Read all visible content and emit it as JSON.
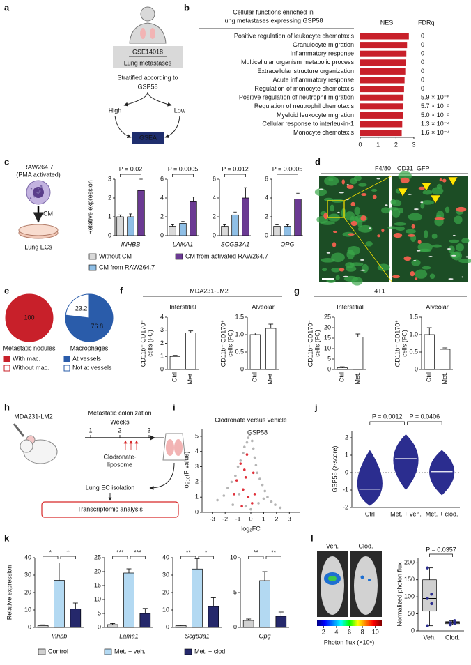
{
  "panels": {
    "a": {
      "label": "a",
      "dataset": "GSE14018",
      "tissue": "Lung metastases",
      "stratification": "Stratified according to",
      "signature": "GSP58",
      "high": "High",
      "low": "Low",
      "method": "GSEA"
    },
    "c": {
      "cell": "RAW264.7",
      "treatment": "(PMA activated)",
      "medium": "CM",
      "target": "Lung ECs"
    },
    "d": {
      "label": "d",
      "markers": [
        {
          "name": "F4/80",
          "color": "#e8413c"
        },
        {
          "name": "CD31",
          "color": "#8c8c8c"
        },
        {
          "name": "GFP",
          "color": "#2fae3a"
        }
      ]
    },
    "h": {
      "label": "h",
      "cell": "MDA231-LM2",
      "title": "Metastatic colonization",
      "axis_label": "Weeks",
      "weeks": [
        1,
        2,
        3
      ],
      "treatment": [
        "Clodronate-",
        "liposome"
      ],
      "step": "Lung EC isolation",
      "analysis": "Transcriptomic analysis"
    },
    "l": {
      "label": "l",
      "groups": [
        "Veh.",
        "Clod."
      ],
      "colorbar_label": "Photon flux (×10⁶)",
      "colorbar_lim": [
        1,
        11
      ],
      "colorbar_ticks": [
        2,
        4,
        6,
        8,
        10
      ]
    }
  },
  "chart_data": [
    {
      "type": "hbar",
      "label": "b",
      "title": [
        "Cellular functions enriched in",
        "lung metastases expressing GSP58"
      ],
      "value_label": "NES",
      "fdr_title": "FDRq",
      "color": "#c8202a",
      "categories": [
        "Positive regulation of leukocyte chemotaxis",
        "Granulocyte migration",
        "Inflammatory response",
        "Multicellular organism metabolic process",
        "Extracellular structure organization",
        "Acute inflammatory response",
        "Regulation of monocyte chemotaxis",
        "Positive regulation of neutrophil migration",
        "Regulation of neutrophil chemotaxis",
        "Myeloid leukocyte migration",
        "Cellular response to interleukin-1",
        "Monocyte chemotaxis"
      ],
      "values": [
        2.72,
        2.62,
        2.58,
        2.55,
        2.52,
        2.48,
        2.45,
        2.42,
        2.4,
        2.38,
        2.35,
        2.32
      ],
      "fdr": [
        0,
        0,
        0,
        0,
        0,
        0,
        0,
        {
          "value": 5.9e-05,
          "label": "5.9 × 10⁻⁵"
        },
        {
          "value": 5.7e-05,
          "label": "5.7 × 10⁻⁵"
        },
        {
          "value": 5e-05,
          "label": "5.0 × 10⁻⁵"
        },
        {
          "value": 0.00013,
          "label": "1.3 × 10⁻⁴"
        },
        {
          "value": 0.00016,
          "label": "1.6 × 10⁻⁴"
        }
      ],
      "xlim": [
        0,
        3
      ],
      "xticks": [
        0,
        1,
        2,
        3
      ]
    },
    {
      "type": "bar_panel",
      "label": "c",
      "ylabel": "Relative expression",
      "legend": [
        {
          "name": "Without CM",
          "color": "#d9d9d9"
        },
        {
          "name": "CM from RAW264.7",
          "color": "#8fbfe6"
        },
        {
          "name": "CM from activated RAW264.7",
          "color": "#6b3a93"
        }
      ],
      "subplots": [
        {
          "title": "INHBB",
          "annotation": "P = 0.02",
          "values": [
            1,
            1,
            2.4
          ],
          "errors": [
            0.1,
            0.15,
            0.6
          ],
          "ylim": [
            0,
            3
          ],
          "yticks": [
            0,
            1,
            2,
            3
          ]
        },
        {
          "title": "LAMA1",
          "annotation": "P = 0.0005",
          "values": [
            1,
            1.3,
            3.6
          ],
          "errors": [
            0.15,
            0.2,
            0.5
          ],
          "ylim": [
            0,
            6
          ],
          "yticks": [
            0,
            2,
            4,
            6
          ]
        },
        {
          "title": "SCGB3A1",
          "annotation": "P = 0.012",
          "values": [
            1,
            2.2,
            4
          ],
          "errors": [
            0.15,
            0.3,
            1.1
          ],
          "ylim": [
            0,
            6
          ],
          "yticks": [
            0,
            2,
            4,
            6
          ]
        },
        {
          "title": "OPG",
          "annotation": "P = 0.0005",
          "values": [
            1,
            1,
            3.9
          ],
          "errors": [
            0.15,
            0.15,
            0.6
          ],
          "ylim": [
            0,
            6
          ],
          "yticks": [
            0,
            2,
            4,
            6
          ]
        }
      ]
    },
    {
      "type": "pie",
      "label": "e",
      "pies": [
        {
          "title": "Metastatic nodules",
          "slices": [
            {
              "name": "With mac.",
              "value": 100,
              "color": "#c8202a"
            },
            {
              "name": "Without mac.",
              "color": "#ffffff"
            }
          ]
        },
        {
          "title": "Macrophages",
          "slices": [
            {
              "name": "At vessels",
              "value": 76.8,
              "color": "#2a5caa"
            },
            {
              "name": "Not at vessels",
              "value": 23.2,
              "color": "#ffffff"
            }
          ]
        }
      ]
    },
    {
      "type": "bar_panel",
      "label": "f",
      "title": "MDA231-LM2",
      "categories": [
        "Ctrl",
        "Met."
      ],
      "color": "#ffffff",
      "subplots": [
        {
          "title": "Interstitial",
          "ylabel": [
            "CD11b⁺ CD170⁻",
            "cells (FC)"
          ],
          "values": [
            1,
            2.8
          ],
          "errors": [
            0.08,
            0.15
          ],
          "ylim": [
            0,
            4
          ],
          "yticks": [
            0,
            1,
            2,
            3,
            4
          ]
        },
        {
          "title": "Alveolar",
          "ylabel": [
            "CD11b⁻ CD170⁺",
            "cells (FC)"
          ],
          "values": [
            1,
            1.18
          ],
          "errors": [
            0.05,
            0.12
          ],
          "ylim": [
            0,
            1.5
          ],
          "yticks": [
            0,
            0.5,
            {
              "value": 1,
              "label": "1.0"
            },
            1.5
          ]
        }
      ]
    },
    {
      "type": "bar_panel",
      "label": "g",
      "title": "4T1",
      "categories": [
        "Ctrl",
        "Met."
      ],
      "color": "#ffffff",
      "subplots": [
        {
          "title": "Interstitial",
          "ylabel": [
            "CD11b⁺ CD170⁻",
            "cells (FC)"
          ],
          "values": [
            0.8,
            15.5
          ],
          "errors": [
            0.5,
            1.5
          ],
          "ylim": [
            0,
            25
          ],
          "yticks": [
            0,
            5,
            10,
            15,
            20,
            25
          ]
        },
        {
          "title": "Alveolar",
          "ylabel": [
            "CD11b⁻ CD170⁺",
            "cells (FC)"
          ],
          "values": [
            1,
            0.58
          ],
          "errors": [
            0.2,
            0.04
          ],
          "ylim": [
            0,
            1.5
          ],
          "yticks": [
            0,
            0.5,
            {
              "value": 1,
              "label": "1.0"
            },
            1.5
          ]
        }
      ]
    },
    {
      "type": "scatter",
      "label": "i",
      "title": "Clodronate versus vehicle",
      "xlabel": "log₂FC",
      "ylabel": "log₁₀(P value)",
      "xlim": [
        -3.8,
        3.8
      ],
      "ylim": [
        0,
        5.5
      ],
      "xticks": [
        -3,
        -2,
        -1,
        0,
        1,
        2,
        3
      ],
      "yticks": [
        0,
        1,
        2,
        3,
        4,
        5
      ],
      "series": [
        {
          "color": "#b5b5b5",
          "x": [
            -2.6,
            -2.1,
            -1.8,
            -1.5,
            -1.2,
            -1.0,
            -0.8,
            -0.6,
            -0.5,
            -0.3,
            -0.2,
            -0.1,
            0.1,
            0.2,
            0.3,
            0.4,
            0.5,
            0.7,
            0.9,
            1.1,
            1.3,
            1.6,
            1.9,
            2.3,
            -0.4,
            0.0,
            0.6,
            -0.9,
            1.0,
            -1.4
          ],
          "y": [
            0.8,
            1.1,
            1.6,
            2.0,
            2.4,
            3.0,
            3.4,
            3.9,
            4.3,
            4.6,
            4.9,
            5.1,
            4.7,
            4.2,
            3.6,
            3.1,
            2.6,
            2.2,
            1.8,
            1.4,
            1.0,
            0.7,
            0.5,
            0.3,
            0.4,
            0.2,
            0.6,
            1.2,
            0.9,
            0.5
          ]
        },
        {
          "name": "GSP58",
          "color": "#e0303a",
          "x": [
            -1.1,
            -0.8,
            -0.6,
            -0.5,
            -0.3,
            -0.2,
            0.1,
            0.3,
            -0.7,
            -0.4,
            0.2,
            -1.3
          ],
          "y": [
            2.1,
            3.2,
            1.5,
            2.8,
            3.8,
            1.0,
            0.6,
            1.2,
            0.4,
            2.3,
            2.6,
            1.2
          ]
        }
      ]
    },
    {
      "type": "violin",
      "label": "j",
      "ylabel": "GSP58 (z-score)",
      "categories": [
        "Ctrl",
        "Met. + veh.",
        "Met. + clod."
      ],
      "annotations": [
        "P = 0.0012",
        "P = 0.0406"
      ],
      "medians": [
        -0.95,
        0.8,
        0.05
      ],
      "ranges": [
        [
          -1.9,
          1.3
        ],
        [
          -1.0,
          2.2
        ],
        [
          -1.3,
          1.3
        ]
      ],
      "ylim": [
        -2,
        2.4
      ],
      "yticks": [
        -2,
        -1,
        0,
        1,
        2
      ],
      "color": "#2b2d8f",
      "reference_line": 0
    },
    {
      "type": "bar_panel",
      "label": "k",
      "ylabel": "Relative expression",
      "legend": [
        {
          "name": "Control",
          "color": "#d0d0d0"
        },
        {
          "name": "Met. + veh.",
          "color": "#b3d9f2"
        },
        {
          "name": "Met. + clod.",
          "color": "#25286b"
        }
      ],
      "subplots": [
        {
          "title": "Inhbb",
          "annotations": [
            "*",
            "†"
          ],
          "values": [
            1,
            27,
            10.5
          ],
          "errors": [
            0.5,
            10,
            3.5
          ],
          "ylim": [
            0,
            40
          ],
          "yticks": [
            0,
            10,
            20,
            30,
            40
          ]
        },
        {
          "title": "Lama1",
          "annotations": [
            "***",
            "***"
          ],
          "values": [
            1,
            19.5,
            5
          ],
          "errors": [
            0.4,
            1.5,
            1.8
          ],
          "ylim": [
            0,
            25
          ],
          "yticks": [
            0,
            5,
            10,
            15,
            20,
            25
          ]
        },
        {
          "title": "Scgb3a1",
          "annotations": [
            "**",
            "*"
          ],
          "values": [
            1,
            33.5,
            12
          ],
          "errors": [
            0.3,
            6,
            5
          ],
          "ylim": [
            0,
            40
          ],
          "yticks": [
            0,
            10,
            20,
            30,
            40
          ]
        },
        {
          "title": "Opg",
          "annotations": [
            "**",
            "**"
          ],
          "values": [
            1,
            6.7,
            1.6
          ],
          "errors": [
            0.2,
            1.3,
            0.6
          ],
          "ylim": [
            0,
            10
          ],
          "yticks": [
            0,
            5,
            10
          ]
        }
      ]
    },
    {
      "type": "box",
      "ylabel": "Normalized photon flux",
      "annotation": "P = 0.0357",
      "categories": [
        "Veh.",
        "Clod."
      ],
      "ylim": [
        0,
        215
      ],
      "yticks": [
        0,
        50,
        100,
        150,
        200
      ],
      "colors": [
        "#d0d0d0",
        "#d0d0d0"
      ],
      "point_color": "#2b2d8f",
      "boxes": [
        {
          "min": 15,
          "q1": 58,
          "median": 95,
          "q3": 150,
          "max": 185,
          "points": [
            15,
            80,
            95,
            108,
            185
          ]
        },
        {
          "min": 18,
          "q1": 21,
          "median": 24,
          "q3": 27,
          "max": 30,
          "points": [
            18,
            22,
            24,
            30
          ]
        }
      ]
    }
  ]
}
